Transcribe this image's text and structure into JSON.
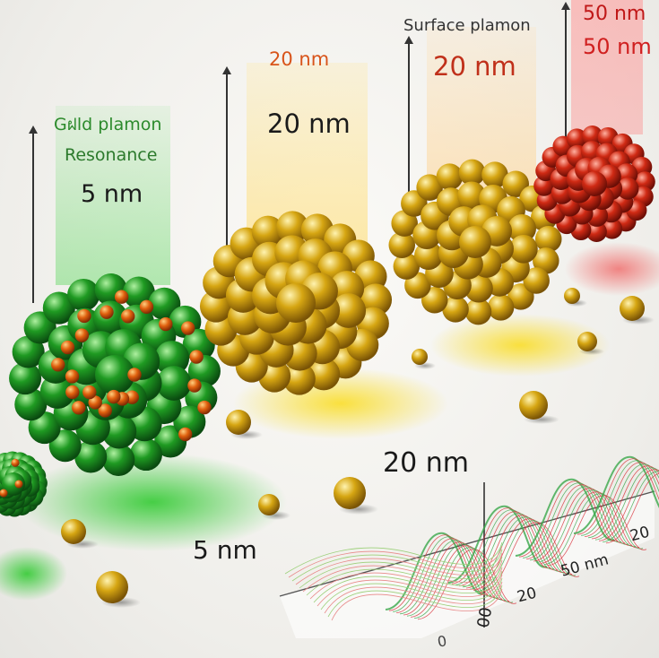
{
  "labels": {
    "green_title_1": "Gฝld plamon",
    "green_title_2": "Resonance",
    "green_size": "5 nm",
    "yellow_small": "20 nm",
    "yellow_big": "20 nm",
    "orange_title": "Surface plamon",
    "orange_size": "20 nm",
    "red_size_1": "50 nm",
    "red_size_2": "50 nm",
    "floor_size": "5 nm",
    "graph_peak": "20 nm"
  },
  "graph_axis": {
    "zero_left": "0",
    "zero_mid": "00",
    "tick_20a": "20",
    "tick_50nm": "50 nm",
    "tick_20b": "20"
  },
  "colors": {
    "green": "#1a9a1a",
    "gold": "#d4a20f",
    "red": "#c8281a",
    "spectrum_green": "#3aa84a",
    "spectrum_red": "#d8303a"
  }
}
